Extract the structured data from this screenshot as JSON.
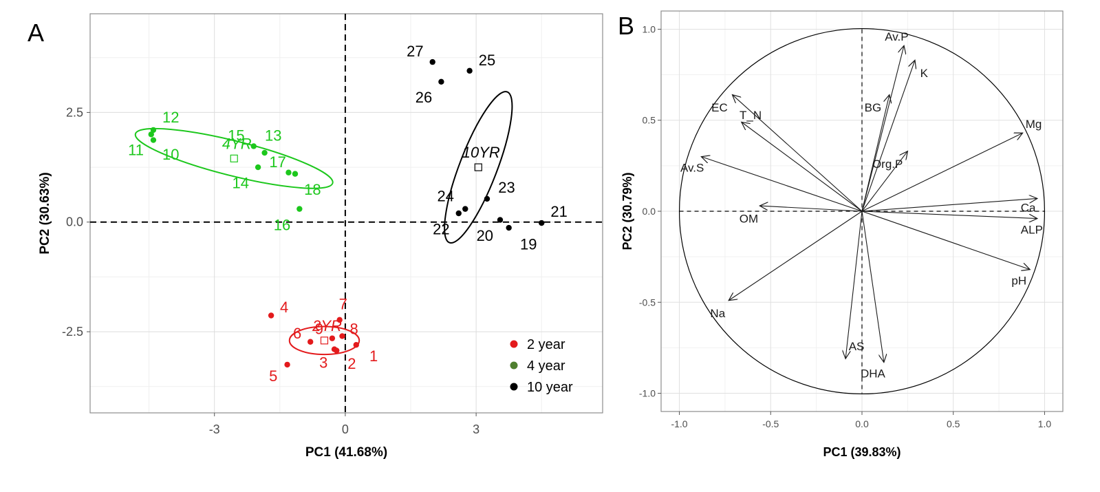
{
  "chart_data": [
    {
      "panel_label": "A",
      "type": "scatter",
      "xlabel": "PC1 (41.68%)",
      "ylabel": "PC2 (30.63%)",
      "xlim": [
        -5.85,
        5.9
      ],
      "ylim": [
        -4.35,
        4.75
      ],
      "x_ticks": [
        -3,
        0,
        3
      ],
      "x_tick_labels": [
        "-3",
        "0",
        "3"
      ],
      "y_ticks": [
        -2.5,
        0.0,
        2.5
      ],
      "y_tick_labels": [
        "-2.5",
        "0.0",
        "2.5"
      ],
      "grid": true,
      "legend_position": "bottom-right",
      "series": [
        {
          "name": "2 year",
          "color": "#e31a1c",
          "group_label": "2YR",
          "centroid": [
            -0.48,
            -2.7
          ],
          "ellipse": {
            "rx": 0.8,
            "ry": 0.32,
            "angle": 0
          },
          "points": [
            {
              "id": "1",
              "x": 0.25,
              "y": -2.8,
              "lx": 0.65,
              "ly": -3.05
            },
            {
              "id": "2",
              "x": -0.2,
              "y": -2.93,
              "lx": 0.15,
              "ly": -3.22
            },
            {
              "id": "3",
              "x": -0.25,
              "y": -2.9,
              "lx": -0.5,
              "ly": -3.2
            },
            {
              "id": "4",
              "x": -1.7,
              "y": -2.13,
              "lx": -1.4,
              "ly": -1.93
            },
            {
              "id": "5",
              "x": -1.33,
              "y": -3.25,
              "lx": -1.65,
              "ly": -3.5
            },
            {
              "id": "6",
              "x": -0.8,
              "y": -2.73,
              "lx": -1.1,
              "ly": -2.53
            },
            {
              "id": "7",
              "x": -0.13,
              "y": -2.23,
              "lx": -0.05,
              "ly": -1.86
            },
            {
              "id": "8",
              "x": -0.07,
              "y": -2.6,
              "lx": 0.2,
              "ly": -2.43
            },
            {
              "id": "9",
              "x": -0.3,
              "y": -2.65,
              "lx": -0.6,
              "ly": -2.43
            }
          ]
        },
        {
          "name": "4 year",
          "color": "#1cc71c",
          "legend_color": "#4f7f2f",
          "group_label": "4YR",
          "centroid": [
            -2.55,
            1.45
          ],
          "ellipse": {
            "rx": 2.33,
            "ry": 0.4,
            "angle": 14
          },
          "points": [
            {
              "id": "10",
              "x": -4.45,
              "y": 2.0,
              "lx": -4.0,
              "ly": 1.55
            },
            {
              "id": "11",
              "x": -4.4,
              "y": 1.87,
              "lx": -4.8,
              "ly": 1.65
            },
            {
              "id": "12",
              "x": -4.4,
              "y": 2.1,
              "lx": -4.0,
              "ly": 2.4
            },
            {
              "id": "13",
              "x": -1.85,
              "y": 1.58,
              "lx": -1.65,
              "ly": 1.98
            },
            {
              "id": "14",
              "x": -2.0,
              "y": 1.25,
              "lx": -2.4,
              "ly": 0.9
            },
            {
              "id": "15",
              "x": -2.1,
              "y": 1.73,
              "lx": -2.5,
              "ly": 1.98
            },
            {
              "id": "16",
              "x": -1.05,
              "y": 0.3,
              "lx": -1.45,
              "ly": -0.06
            },
            {
              "id": "17",
              "x": -1.3,
              "y": 1.13,
              "lx": -1.55,
              "ly": 1.38
            },
            {
              "id": "18",
              "x": -1.15,
              "y": 1.1,
              "lx": -0.75,
              "ly": 0.75
            }
          ]
        },
        {
          "name": "10 year",
          "color": "#000000",
          "legend_color": "#000000",
          "group_label": "10YR",
          "centroid": [
            3.05,
            1.25
          ],
          "ellipse": {
            "rx": 1.85,
            "ry": 0.43,
            "angle": 111
          },
          "points": [
            {
              "id": "19",
              "x": 3.75,
              "y": -0.13,
              "lx": 4.2,
              "ly": -0.5
            },
            {
              "id": "20",
              "x": 3.55,
              "y": 0.05,
              "lx": 3.2,
              "ly": -0.3
            },
            {
              "id": "21",
              "x": 4.5,
              "y": -0.02,
              "lx": 4.9,
              "ly": 0.25
            },
            {
              "id": "22",
              "x": 2.6,
              "y": 0.2,
              "lx": 2.2,
              "ly": -0.15
            },
            {
              "id": "23",
              "x": 3.25,
              "y": 0.53,
              "lx": 3.7,
              "ly": 0.8
            },
            {
              "id": "24",
              "x": 2.75,
              "y": 0.3,
              "lx": 2.3,
              "ly": 0.6
            },
            {
              "id": "25",
              "x": 2.85,
              "y": 3.45,
              "lx": 3.25,
              "ly": 3.7
            },
            {
              "id": "26",
              "x": 2.2,
              "y": 3.2,
              "lx": 1.8,
              "ly": 2.85
            },
            {
              "id": "27",
              "x": 2.0,
              "y": 3.65,
              "lx": 1.6,
              "ly": 3.9
            }
          ]
        }
      ]
    },
    {
      "panel_label": "B",
      "type": "scatter",
      "subtype": "biplot-correlation-circle",
      "xlabel": "PC1 (39.83%)",
      "ylabel": "PC2 (30.79%)",
      "xlim": [
        -1.1,
        1.1
      ],
      "ylim": [
        -1.1,
        1.1
      ],
      "x_ticks": [
        -1.0,
        -0.5,
        0.0,
        0.5,
        1.0
      ],
      "x_tick_labels": [
        "-1.0",
        "-0.5",
        "0.0",
        "0.5",
        "1.0"
      ],
      "y_ticks": [
        -1.0,
        -0.5,
        0.0,
        0.5,
        1.0
      ],
      "y_tick_labels": [
        "-1.0",
        "-0.5",
        "0.0",
        "0.5",
        "1.0"
      ],
      "grid": true,
      "circle_radius": 1.0,
      "vectors": [
        {
          "name": "Av.P",
          "x": 0.23,
          "y": 0.91,
          "lx": 0.19,
          "ly": 0.96
        },
        {
          "name": "K",
          "x": 0.29,
          "y": 0.83,
          "lx": 0.34,
          "ly": 0.76
        },
        {
          "name": "BG",
          "x": 0.15,
          "y": 0.64,
          "lx": 0.06,
          "ly": 0.57
        },
        {
          "name": "Mg",
          "x": 0.88,
          "y": 0.43,
          "lx": 0.94,
          "ly": 0.48
        },
        {
          "name": "Org.P",
          "x": 0.25,
          "y": 0.33,
          "lx": 0.14,
          "ly": 0.26
        },
        {
          "name": "EC",
          "x": -0.71,
          "y": 0.64,
          "lx": -0.78,
          "ly": 0.57
        },
        {
          "name": "T_N",
          "x": -0.66,
          "y": 0.49,
          "lx": -0.61,
          "ly": 0.53
        },
        {
          "name": "Av.S",
          "x": -0.88,
          "y": 0.3,
          "lx": -0.93,
          "ly": 0.24
        },
        {
          "name": "OM",
          "x": -0.56,
          "y": 0.03,
          "lx": -0.62,
          "ly": -0.04
        },
        {
          "name": "Ca",
          "x": 0.96,
          "y": 0.07,
          "lx": 0.91,
          "ly": 0.02
        },
        {
          "name": "ALP",
          "x": 0.96,
          "y": -0.04,
          "lx": 0.93,
          "ly": -0.1
        },
        {
          "name": "pH",
          "x": 0.92,
          "y": -0.32,
          "lx": 0.86,
          "ly": -0.38
        },
        {
          "name": "Na",
          "x": -0.73,
          "y": -0.49,
          "lx": -0.79,
          "ly": -0.56
        },
        {
          "name": "AS",
          "x": -0.09,
          "y": -0.81,
          "lx": -0.03,
          "ly": -0.74
        },
        {
          "name": "DHA",
          "x": 0.12,
          "y": -0.83,
          "lx": 0.06,
          "ly": -0.89
        }
      ]
    }
  ]
}
